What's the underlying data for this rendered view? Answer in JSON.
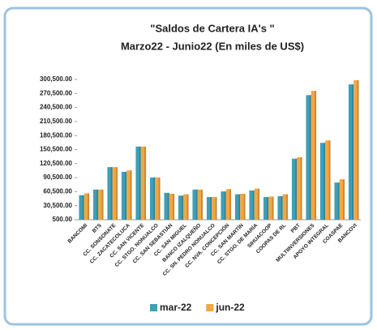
{
  "chart_data": {
    "type": "bar",
    "title": [
      "\"Saldos de Cartera IA's \"",
      "Marzo22 - Junio22 (En miles de US$)"
    ],
    "categories": [
      "BANCOMI",
      "BTS",
      "CC. SONSONATE",
      "CC. ZACATECOLUCA",
      "CC. SAN VICENTE",
      "CC. STGO. NONUALCO",
      "CC. SAN SEBASTIÁN",
      "CC. SAN MIGUEL",
      "BANCO IZALQUEÑO",
      "CC. SN. PEDRO NONUALCO",
      "CC. NVA. CONCEPCIÓN",
      "CC. SAN MARTÍN",
      "CC. STGO. DE MARÍA",
      "SIHUACOOP",
      "COOPAS DE RL",
      "PBT",
      "MULTIINVERSIONES",
      "APOYO INTEGRAL",
      "COASPAE",
      "BANCOVI"
    ],
    "series": [
      {
        "name": "mar-22",
        "color": "#3e9fb6",
        "values": [
          53000,
          65000,
          113000,
          103000,
          157000,
          91000,
          58000,
          52000,
          65000,
          49000,
          61000,
          55000,
          63000,
          49000,
          51000,
          131000,
          267000,
          165000,
          80000,
          290000
        ]
      },
      {
        "name": "jun-22",
        "color": "#f4a640",
        "values": [
          57000,
          65000,
          113000,
          106000,
          157000,
          91000,
          56000,
          55000,
          65000,
          49000,
          66000,
          56000,
          67000,
          50000,
          55000,
          134000,
          276000,
          170000,
          87000,
          299000
        ]
      }
    ],
    "ylim": [
      500,
      300500
    ],
    "yticks": [
      {
        "value": 500,
        "label": "500.00"
      },
      {
        "value": 30500,
        "label": "30,500.00"
      },
      {
        "value": 60500,
        "label": "60,500.00"
      },
      {
        "value": 90500,
        "label": "90,500.00"
      },
      {
        "value": 120500,
        "label": "120,500.00"
      },
      {
        "value": 150500,
        "label": "150,500.00"
      },
      {
        "value": 180500,
        "label": "180,500.00"
      },
      {
        "value": 210500,
        "label": "210,500.00"
      },
      {
        "value": 240500,
        "label": "240,500.00"
      },
      {
        "value": 270500,
        "label": "270,500.00"
      },
      {
        "value": 300500,
        "label": "300,500.00"
      }
    ],
    "legend": "bottom"
  }
}
